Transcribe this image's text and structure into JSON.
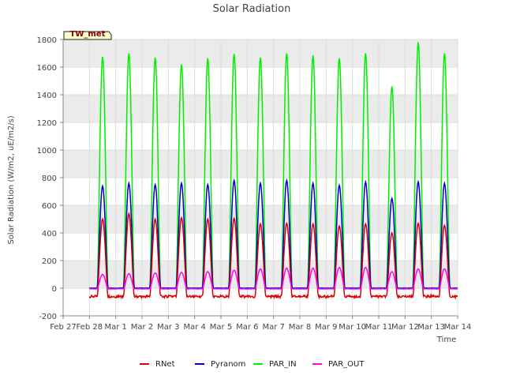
{
  "chart_data": {
    "type": "line",
    "title": "Solar Radiation",
    "xlabel": "Time",
    "ylabel": "Solar Radiation (W/m2, uE/m2/s)",
    "badge": "TW_met",
    "ylim": [
      -200,
      1800
    ],
    "yticks": [
      -200,
      0,
      200,
      400,
      600,
      800,
      1000,
      1200,
      1400,
      1600,
      1800
    ],
    "xlim": [
      0,
      15
    ],
    "xticks": [
      {
        "day": 0,
        "label": "Feb 27"
      },
      {
        "day": 1,
        "label": "Feb 28"
      },
      {
        "day": 2,
        "label": "Mar 1"
      },
      {
        "day": 3,
        "label": "Mar 2"
      },
      {
        "day": 4,
        "label": "Mar 3"
      },
      {
        "day": 5,
        "label": "Mar 4"
      },
      {
        "day": 6,
        "label": "Mar 5"
      },
      {
        "day": 7,
        "label": "Mar 6"
      },
      {
        "day": 8,
        "label": "Mar 7"
      },
      {
        "day": 9,
        "label": "Mar 8"
      },
      {
        "day": 10,
        "label": "Mar 9"
      },
      {
        "day": 11,
        "label": "Mar 10"
      },
      {
        "day": 12,
        "label": "Mar 11"
      },
      {
        "day": 13,
        "label": "Mar 12"
      },
      {
        "day": 14,
        "label": "Mar 13"
      },
      {
        "day": 15,
        "label": "Mar 14"
      }
    ],
    "grid": true,
    "legend_position": "bottom",
    "series": [
      {
        "name": "RNet",
        "color": "#dd0000",
        "night": -60,
        "peaks": [
          500,
          540,
          500,
          510,
          500,
          505,
          465,
          470,
          465,
          450,
          465,
          400,
          470,
          455
        ]
      },
      {
        "name": "Pyranom",
        "color": "#0000cc",
        "night": 0,
        "peaks": [
          740,
          760,
          750,
          760,
          750,
          780,
          760,
          780,
          760,
          745,
          770,
          650,
          770,
          760
        ]
      },
      {
        "name": "PAR_IN",
        "color": "#00ee00",
        "night": 0,
        "peaks": [
          1675,
          1700,
          1670,
          1620,
          1665,
          1695,
          1670,
          1700,
          1685,
          1665,
          1700,
          1460,
          1780,
          1700
        ]
      },
      {
        "name": "PAR_OUT",
        "color": "#ff00ff",
        "night": -5,
        "peaks": [
          100,
          105,
          110,
          115,
          120,
          130,
          140,
          145,
          145,
          150,
          150,
          120,
          140,
          140
        ]
      }
    ],
    "day_start": 1.0,
    "days": 14
  }
}
